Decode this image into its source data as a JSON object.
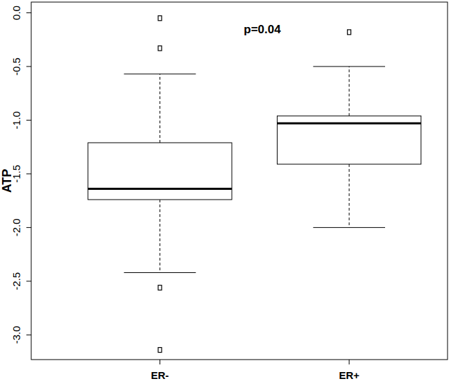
{
  "chart_data": {
    "type": "box",
    "y_label": "ATP",
    "annotation": "p=0.04",
    "categories": [
      "ER-",
      "ER+"
    ],
    "color": "#000000",
    "boxes": [
      {
        "whisker_low": -2.42,
        "q1": -1.74,
        "median": -1.64,
        "q3": -1.21,
        "whisker_high": -0.57,
        "outliers": [
          -0.05,
          -0.33,
          -2.56,
          -3.14
        ]
      },
      {
        "whisker_low": -2.0,
        "q1": -1.41,
        "median": -1.03,
        "q3": -0.96,
        "whisker_high": -0.5,
        "outliers": [
          -0.18
        ]
      }
    ],
    "ylim": [
      -3.23,
      0.1
    ],
    "yticks": [
      {
        "value": -3,
        "label": "-3.0"
      },
      -2.5,
      {
        "value": -2,
        "label": "-2.0"
      },
      -1.5,
      {
        "value": -1,
        "label": "-1.0"
      },
      -0.5,
      {
        "value": 0,
        "label": "0.0"
      }
    ]
  }
}
